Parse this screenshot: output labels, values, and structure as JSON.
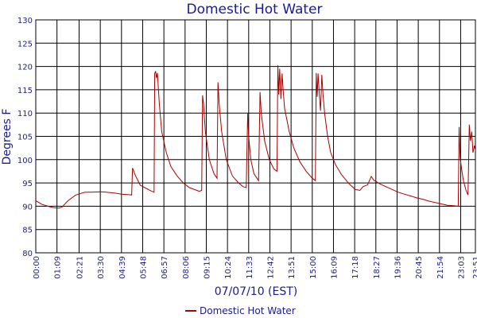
{
  "chart_data": {
    "type": "line",
    "title": "Domestic Hot Water",
    "xlabel": "07/07/10 (EST)",
    "ylabel": "Degrees F",
    "ylim": [
      80,
      130
    ],
    "xlim_minutes": [
      0,
      1431
    ],
    "y_ticks": [
      80,
      85,
      90,
      95,
      100,
      105,
      110,
      115,
      120,
      125,
      130
    ],
    "x_ticks": [
      "00:00",
      "01:09",
      "02:21",
      "03:30",
      "04:39",
      "05:48",
      "06:57",
      "08:06",
      "09:15",
      "10:24",
      "11:33",
      "12:42",
      "13:51",
      "15:00",
      "16:09",
      "17:18",
      "18:27",
      "19:36",
      "20:45",
      "21:54",
      "23:03",
      "23:51"
    ],
    "grid": true,
    "legend_position": "bottom-center",
    "colors": {
      "series": "#aa0000",
      "grid": "#000000",
      "text": "#1a1a8c"
    },
    "series": [
      {
        "name": "Domestic Hot Water",
        "points": [
          [
            "00:00",
            91.2
          ],
          [
            "00:20",
            90.4
          ],
          [
            "00:45",
            89.9
          ],
          [
            "01:00",
            89.7
          ],
          [
            "01:15",
            89.6
          ],
          [
            "01:25",
            89.8
          ],
          [
            "01:45",
            91.2
          ],
          [
            "02:10",
            92.4
          ],
          [
            "02:40",
            93.0
          ],
          [
            "03:00",
            93.0
          ],
          [
            "03:30",
            93.1
          ],
          [
            "03:50",
            93.0
          ],
          [
            "04:20",
            92.8
          ],
          [
            "04:39",
            92.6
          ],
          [
            "05:00",
            92.5
          ],
          [
            "05:12",
            92.4
          ],
          [
            "05:15",
            98.2
          ],
          [
            "05:25",
            96.5
          ],
          [
            "05:40",
            94.5
          ],
          [
            "06:00",
            93.8
          ],
          [
            "06:15",
            93.3
          ],
          [
            "06:25",
            93.0
          ],
          [
            "06:27",
            118.5
          ],
          [
            "06:30",
            119.0
          ],
          [
            "06:33",
            117.5
          ],
          [
            "06:36",
            118.6
          ],
          [
            "06:42",
            112.0
          ],
          [
            "06:50",
            106.0
          ],
          [
            "07:05",
            101.5
          ],
          [
            "07:20",
            98.5
          ],
          [
            "07:40",
            96.5
          ],
          [
            "08:00",
            95.0
          ],
          [
            "08:20",
            94.0
          ],
          [
            "08:40",
            93.5
          ],
          [
            "08:52",
            93.2
          ],
          [
            "09:00",
            93.4
          ],
          [
            "09:03",
            113.8
          ],
          [
            "09:06",
            112.0
          ],
          [
            "09:12",
            106.0
          ],
          [
            "09:25",
            100.0
          ],
          [
            "09:40",
            97.0
          ],
          [
            "09:50",
            96.0
          ],
          [
            "09:53",
            116.6
          ],
          [
            "09:57",
            112.0
          ],
          [
            "10:05",
            106.0
          ],
          [
            "10:20",
            100.0
          ],
          [
            "10:40",
            96.5
          ],
          [
            "11:00",
            95.0
          ],
          [
            "11:15",
            94.2
          ],
          [
            "11:25",
            94.0
          ],
          [
            "11:30",
            110.0
          ],
          [
            "11:33",
            105.0
          ],
          [
            "11:40",
            100.0
          ],
          [
            "11:50",
            97.0
          ],
          [
            "12:05",
            95.5
          ],
          [
            "12:10",
            114.5
          ],
          [
            "12:14",
            110.0
          ],
          [
            "12:25",
            104.0
          ],
          [
            "12:40",
            100.0
          ],
          [
            "12:55",
            98.0
          ],
          [
            "13:05",
            97.5
          ],
          [
            "13:08",
            120.2
          ],
          [
            "13:11",
            114.0
          ],
          [
            "13:14",
            119.5
          ],
          [
            "13:18",
            113.0
          ],
          [
            "13:22",
            118.5
          ],
          [
            "13:25",
            115.0
          ],
          [
            "13:30",
            111.0
          ],
          [
            "13:45",
            106.0
          ],
          [
            "14:00",
            102.5
          ],
          [
            "14:20",
            99.5
          ],
          [
            "14:40",
            97.5
          ],
          [
            "15:00",
            96.0
          ],
          [
            "15:10",
            95.5
          ],
          [
            "15:13",
            118.6
          ],
          [
            "15:16",
            113.5
          ],
          [
            "15:19",
            118.5
          ],
          [
            "15:23",
            114.0
          ],
          [
            "15:27",
            110.5
          ],
          [
            "15:31",
            118.2
          ],
          [
            "15:35",
            114.0
          ],
          [
            "15:40",
            110.0
          ],
          [
            "15:50",
            105.0
          ],
          [
            "16:00",
            101.5
          ],
          [
            "16:15",
            99.0
          ],
          [
            "16:35",
            96.8
          ],
          [
            "17:00",
            94.8
          ],
          [
            "17:20",
            93.6
          ],
          [
            "17:35",
            93.4
          ],
          [
            "17:45",
            94.2
          ],
          [
            "18:00",
            94.6
          ],
          [
            "18:12",
            96.4
          ],
          [
            "18:20",
            95.6
          ],
          [
            "18:40",
            94.8
          ],
          [
            "19:00",
            94.2
          ],
          [
            "19:20",
            93.6
          ],
          [
            "19:40",
            93.0
          ],
          [
            "20:00",
            92.6
          ],
          [
            "20:20",
            92.2
          ],
          [
            "20:40",
            91.8
          ],
          [
            "21:00",
            91.5
          ],
          [
            "21:20",
            91.1
          ],
          [
            "21:40",
            90.8
          ],
          [
            "22:00",
            90.5
          ],
          [
            "22:20",
            90.2
          ],
          [
            "22:40",
            90.1
          ],
          [
            "22:55",
            90.0
          ],
          [
            "22:58",
            107.0
          ],
          [
            "23:01",
            100.5
          ],
          [
            "23:06",
            98.0
          ],
          [
            "23:12",
            95.5
          ],
          [
            "23:20",
            93.5
          ],
          [
            "23:27",
            92.4
          ],
          [
            "23:31",
            107.5
          ],
          [
            "23:35",
            104.0
          ],
          [
            "23:39",
            106.0
          ],
          [
            "23:43",
            101.5
          ],
          [
            "23:48",
            103.0
          ],
          [
            "23:51",
            102.0
          ]
        ]
      }
    ]
  }
}
